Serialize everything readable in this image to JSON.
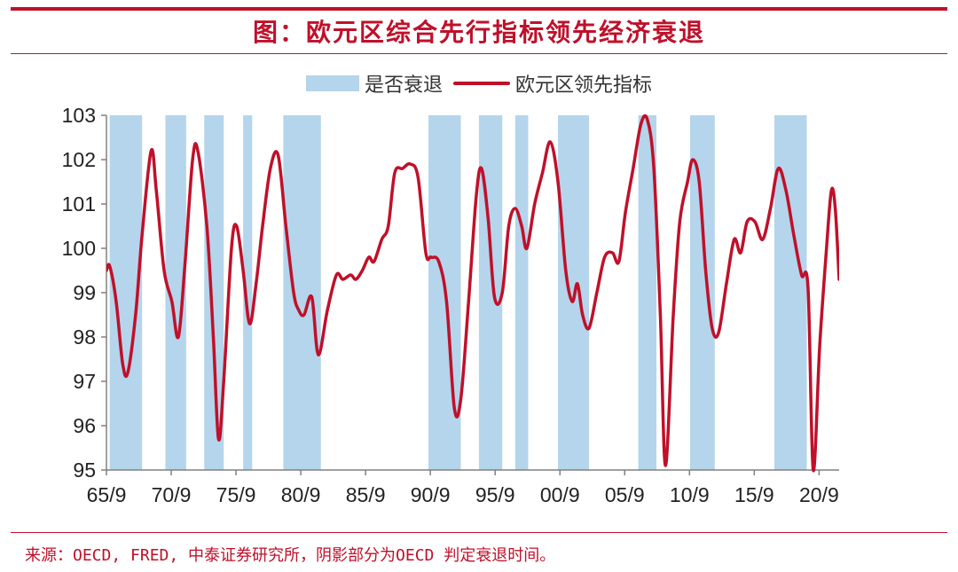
{
  "header": {
    "title": "图：欧元区综合先行指标领先经济衰退"
  },
  "legend": {
    "recession_label": "是否衰退",
    "line_label": "欧元区领先指标"
  },
  "footer": {
    "source": "来源：OECD, FRED, 中泰证券研究所，阴影部分为OECD 判定衰退时间。"
  },
  "colors": {
    "accent": "#c0102a",
    "recession": "#b4d5eb",
    "axis": "#808080"
  },
  "chart_data": {
    "type": "line",
    "title": "",
    "xlabel": "",
    "ylabel": "",
    "xlim": [
      1965.75,
      2022.3
    ],
    "ylim": [
      95,
      103
    ],
    "x_ticks": [
      {
        "value": 1965.75,
        "label": "65/9"
      },
      {
        "value": 1970.75,
        "label": "70/9"
      },
      {
        "value": 1975.75,
        "label": "75/9"
      },
      {
        "value": 1980.75,
        "label": "80/9"
      },
      {
        "value": 1985.75,
        "label": "85/9"
      },
      {
        "value": 1990.75,
        "label": "90/9"
      },
      {
        "value": 1995.75,
        "label": "95/9"
      },
      {
        "value": 2000.75,
        "label": "00/9"
      },
      {
        "value": 2005.75,
        "label": "05/9"
      },
      {
        "value": 2010.75,
        "label": "10/9"
      },
      {
        "value": 2015.75,
        "label": "15/9"
      },
      {
        "value": 2020.75,
        "label": "20/9"
      }
    ],
    "y_ticks": [
      {
        "value": 103,
        "label": "103"
      },
      {
        "value": 102,
        "label": "102"
      },
      {
        "value": 101,
        "label": "101"
      },
      {
        "value": 100,
        "label": "100"
      },
      {
        "value": 99,
        "label": "99"
      },
      {
        "value": 98,
        "label": "98"
      },
      {
        "value": 97,
        "label": "97"
      },
      {
        "value": 96,
        "label": "96"
      },
      {
        "value": 95,
        "label": "95"
      }
    ],
    "recession_periods": [
      [
        1966.0,
        1968.5
      ],
      [
        1970.3,
        1971.9
      ],
      [
        1973.3,
        1974.8
      ],
      [
        1976.3,
        1977.0
      ],
      [
        1979.4,
        1982.3
      ],
      [
        1990.6,
        1993.1
      ],
      [
        1994.5,
        1996.3
      ],
      [
        1997.3,
        1998.3
      ],
      [
        2000.6,
        2003.0
      ],
      [
        2006.8,
        2008.2
      ],
      [
        2010.8,
        2012.7
      ],
      [
        2017.3,
        2019.8
      ]
    ],
    "series": [
      {
        "name": "欧元区领先指标",
        "color": "#c0102a",
        "points": [
          [
            1965.75,
            99.5
          ],
          [
            1966.0,
            99.6
          ],
          [
            1966.5,
            98.8
          ],
          [
            1967.0,
            97.4
          ],
          [
            1967.4,
            97.2
          ],
          [
            1968.0,
            98.5
          ],
          [
            1968.5,
            100.3
          ],
          [
            1969.2,
            102.2
          ],
          [
            1969.6,
            101.3
          ],
          [
            1970.2,
            99.5
          ],
          [
            1970.8,
            98.8
          ],
          [
            1971.3,
            98.0
          ],
          [
            1971.8,
            99.6
          ],
          [
            1972.4,
            102.0
          ],
          [
            1972.8,
            102.2
          ],
          [
            1973.5,
            100.5
          ],
          [
            1974.0,
            98.0
          ],
          [
            1974.4,
            95.7
          ],
          [
            1974.8,
            97.0
          ],
          [
            1975.4,
            100.0
          ],
          [
            1975.8,
            100.5
          ],
          [
            1976.3,
            99.5
          ],
          [
            1976.8,
            98.3
          ],
          [
            1977.3,
            99.2
          ],
          [
            1977.8,
            100.5
          ],
          [
            1978.4,
            101.8
          ],
          [
            1979.0,
            102.1
          ],
          [
            1979.6,
            100.5
          ],
          [
            1980.2,
            99.0
          ],
          [
            1980.6,
            98.6
          ],
          [
            1981.0,
            98.5
          ],
          [
            1981.6,
            98.9
          ],
          [
            1982.1,
            97.6
          ],
          [
            1982.8,
            98.6
          ],
          [
            1983.5,
            99.4
          ],
          [
            1984.0,
            99.3
          ],
          [
            1984.6,
            99.4
          ],
          [
            1985.0,
            99.3
          ],
          [
            1985.5,
            99.5
          ],
          [
            1986.0,
            99.8
          ],
          [
            1986.4,
            99.7
          ],
          [
            1987.0,
            100.2
          ],
          [
            1987.5,
            100.5
          ],
          [
            1988.0,
            101.7
          ],
          [
            1988.6,
            101.8
          ],
          [
            1989.2,
            101.9
          ],
          [
            1989.8,
            101.6
          ],
          [
            1990.4,
            99.9
          ],
          [
            1990.8,
            99.8
          ],
          [
            1991.4,
            99.7
          ],
          [
            1992.0,
            98.8
          ],
          [
            1992.6,
            96.4
          ],
          [
            1993.1,
            96.6
          ],
          [
            1993.7,
            98.8
          ],
          [
            1994.3,
            101.2
          ],
          [
            1994.7,
            101.8
          ],
          [
            1995.2,
            100.7
          ],
          [
            1995.7,
            98.9
          ],
          [
            1996.3,
            99.0
          ],
          [
            1996.8,
            100.5
          ],
          [
            1997.3,
            100.9
          ],
          [
            1997.8,
            100.5
          ],
          [
            1998.2,
            100.0
          ],
          [
            1998.8,
            101.0
          ],
          [
            1999.4,
            101.7
          ],
          [
            2000.0,
            102.4
          ],
          [
            2000.6,
            101.5
          ],
          [
            2001.2,
            99.5
          ],
          [
            2001.7,
            98.8
          ],
          [
            2002.1,
            99.2
          ],
          [
            2002.5,
            98.5
          ],
          [
            2003.0,
            98.2
          ],
          [
            2003.6,
            99.0
          ],
          [
            2004.2,
            99.8
          ],
          [
            2004.8,
            99.9
          ],
          [
            2005.3,
            99.7
          ],
          [
            2005.8,
            100.8
          ],
          [
            2006.4,
            101.8
          ],
          [
            2007.0,
            102.8
          ],
          [
            2007.5,
            102.9
          ],
          [
            2008.0,
            101.8
          ],
          [
            2008.5,
            98.5
          ],
          [
            2008.9,
            95.1
          ],
          [
            2009.5,
            98.5
          ],
          [
            2010.0,
            100.6
          ],
          [
            2010.6,
            101.5
          ],
          [
            2011.0,
            102.0
          ],
          [
            2011.5,
            101.5
          ],
          [
            2012.0,
            99.5
          ],
          [
            2012.5,
            98.2
          ],
          [
            2013.0,
            98.1
          ],
          [
            2013.6,
            99.2
          ],
          [
            2014.2,
            100.2
          ],
          [
            2014.7,
            99.9
          ],
          [
            2015.2,
            100.6
          ],
          [
            2015.8,
            100.6
          ],
          [
            2016.4,
            100.2
          ],
          [
            2017.0,
            100.9
          ],
          [
            2017.6,
            101.8
          ],
          [
            2018.2,
            101.3
          ],
          [
            2018.8,
            100.3
          ],
          [
            2019.4,
            99.4
          ],
          [
            2019.9,
            99.1
          ],
          [
            2020.3,
            95.0
          ],
          [
            2020.8,
            97.8
          ],
          [
            2021.3,
            99.9
          ],
          [
            2021.7,
            101.3
          ],
          [
            2022.0,
            100.9
          ],
          [
            2022.3,
            99.3
          ]
        ]
      }
    ]
  }
}
